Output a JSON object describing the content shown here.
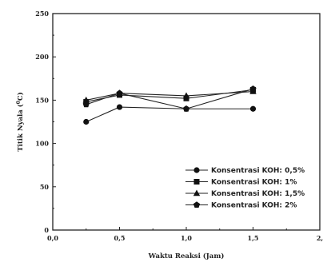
{
  "chart_data": {
    "type": "line",
    "xlabel": "Waktu Reaksi (Jam)",
    "ylabel_main": "Titik Nyala (",
    "ylabel_sup": "0",
    "ylabel_end": "C)",
    "xlim": [
      0,
      2
    ],
    "ylim": [
      0,
      250
    ],
    "x_ticks": [
      0,
      0.5,
      1,
      1.5,
      2
    ],
    "x_tick_labels": [
      "0,0",
      "0,5",
      "1,0",
      "1,5",
      "2,"
    ],
    "y_ticks": [
      0,
      50,
      100,
      150,
      200,
      250
    ],
    "y_tick_labels": [
      "0",
      "50",
      "100",
      "150",
      "200",
      "250"
    ],
    "grid": false,
    "legend_position": "bottom-right",
    "series": [
      {
        "name": "Konsentrasi KOH: 0,5%",
        "marker": "circle",
        "x": [
          0.25,
          0.5,
          1.0,
          1.5
        ],
        "y": [
          125,
          142,
          140,
          140
        ]
      },
      {
        "name": "Konsentrasi KOH: 1%",
        "marker": "square",
        "x": [
          0.25,
          0.5,
          1.0,
          1.5
        ],
        "y": [
          148,
          156,
          152,
          162
        ]
      },
      {
        "name": "Konsentrasi KOH: 1,5%",
        "marker": "triangle",
        "x": [
          0.25,
          0.5,
          1.0,
          1.5
        ],
        "y": [
          150,
          158,
          155,
          160
        ]
      },
      {
        "name": "Konsentrasi KOH: 2%",
        "marker": "pentagon",
        "x": [
          0.25,
          0.5,
          1.0,
          1.5
        ],
        "y": [
          145,
          158,
          140,
          163
        ]
      }
    ]
  }
}
